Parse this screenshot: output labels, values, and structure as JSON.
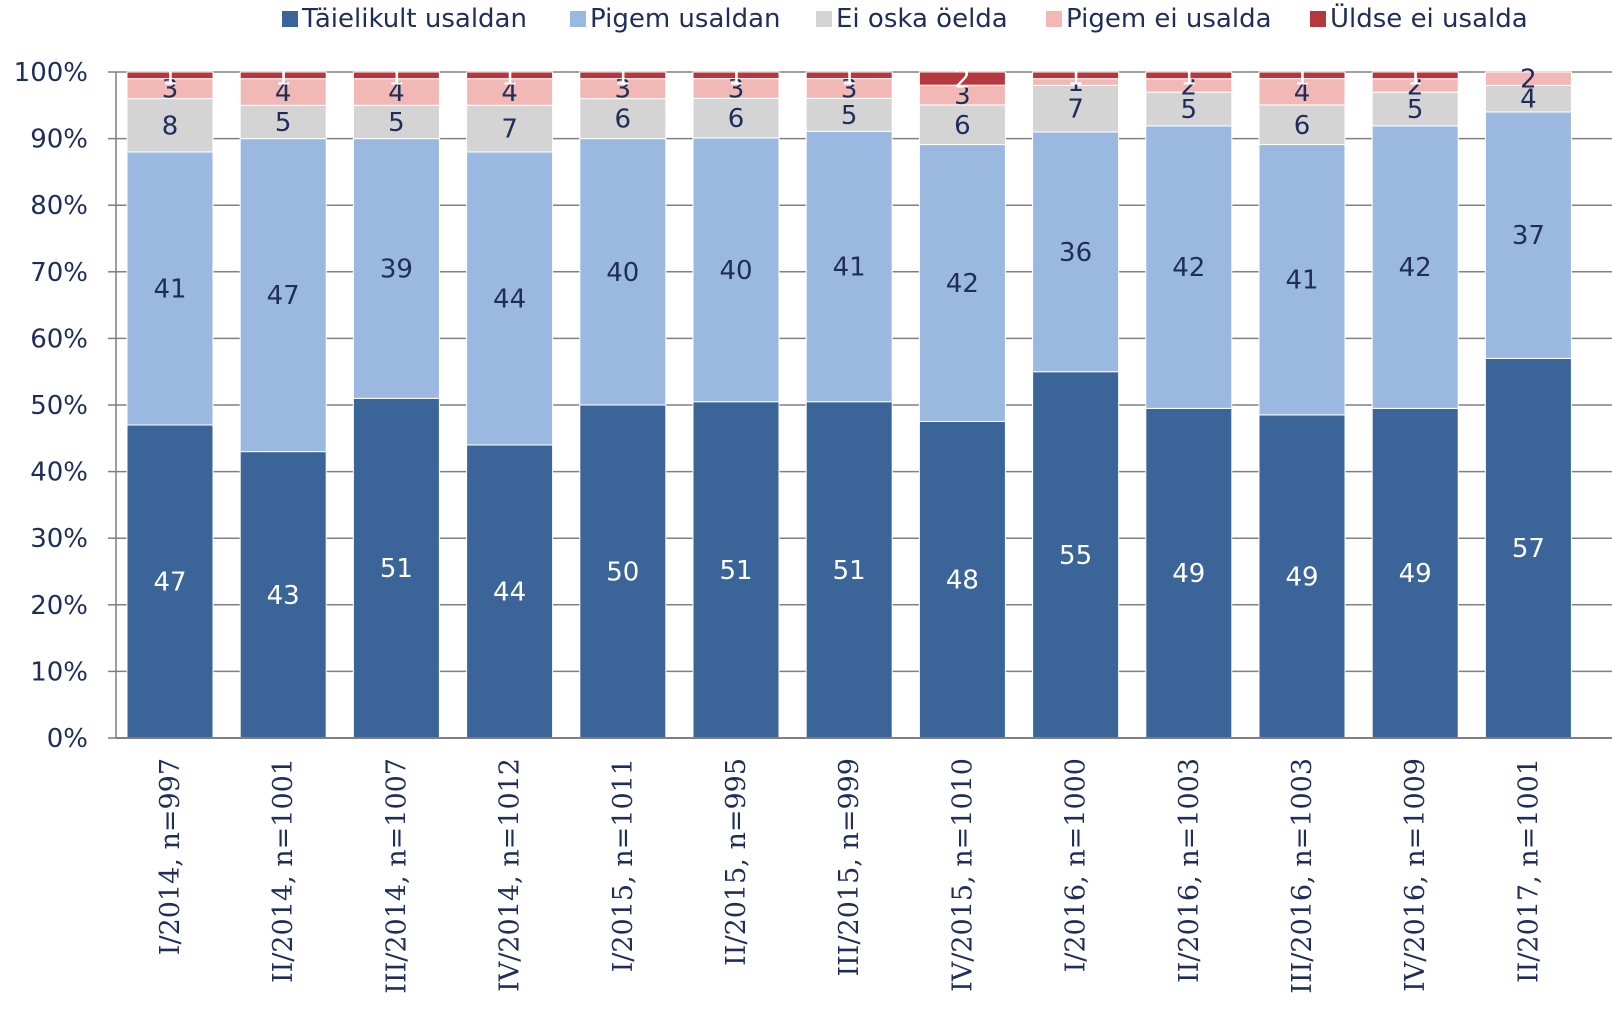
{
  "chart_data": {
    "type": "bar",
    "stacked": true,
    "percent_stacked": true,
    "categories": [
      "I/2014,  n=997",
      "II/2014,  n=1001",
      "III/2014,  n=1007",
      "IV/2014,  n=1012",
      "I/2015,  n=1011",
      "II/2015,  n=995",
      "III/2015,  n=999",
      "IV/2015,  n=1010",
      "I/2016,  n=1000",
      "II/2016,  n=1003",
      "III/2016,  n=1003",
      "IV/2016,  n=1009",
      "II/2017,  n=1001"
    ],
    "series": [
      {
        "name": "Täielikult usaldan",
        "color": "#3b6498",
        "label_color": "#ffffff",
        "values": [
          47,
          43,
          51,
          44,
          50,
          51,
          51,
          48,
          55,
          49,
          49,
          49,
          57
        ]
      },
      {
        "name": "Pigem usaldan",
        "color": "#9bb9e0",
        "label_color": "#1f2d5a",
        "values": [
          41,
          47,
          39,
          44,
          40,
          40,
          41,
          42,
          36,
          42,
          41,
          42,
          37
        ]
      },
      {
        "name": "Ei oska öelda",
        "color": "#d4d4d4",
        "label_color": "#1f2d5a",
        "values": [
          8,
          5,
          5,
          7,
          6,
          6,
          5,
          6,
          7,
          5,
          6,
          5,
          4
        ]
      },
      {
        "name": "Pigem ei usalda",
        "color": "#f2b8b6",
        "label_color": "#1f2d5a",
        "values": [
          3,
          4,
          4,
          4,
          3,
          3,
          3,
          3,
          1,
          2,
          4,
          2,
          2
        ]
      },
      {
        "name": "Üldse ei usalda",
        "color": "#b4383d",
        "label_color": "#ffffff",
        "values": [
          1,
          1,
          1,
          1,
          1,
          1,
          1,
          2,
          1,
          1,
          1,
          1,
          0
        ]
      }
    ],
    "yticks": [
      "0%",
      "10%",
      "20%",
      "30%",
      "40%",
      "50%",
      "60%",
      "70%",
      "80%",
      "90%",
      "100%"
    ],
    "ylim": [
      0,
      100
    ],
    "grid": true,
    "legend_position": "top",
    "axis_color": "#7f7f7f",
    "text_color": "#1f2d5a"
  }
}
